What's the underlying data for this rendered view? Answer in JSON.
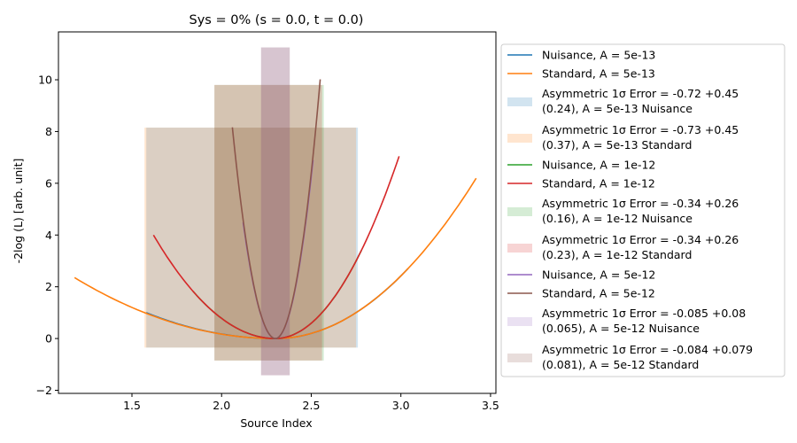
{
  "chart_data": {
    "type": "line",
    "title": "Sys = 0% (s = 0.0, t = 0.0)",
    "xlabel": "Source Index",
    "ylabel": "-2log (L) [arb. unit]",
    "xlim": [
      1.09,
      3.53
    ],
    "ylim": [
      -2.12,
      11.85
    ],
    "xticks": [
      1.5,
      2.0,
      2.5,
      3.0,
      3.5
    ],
    "xtick_labels": [
      "1.5",
      "2.0",
      "2.5",
      "3.0",
      "3.5"
    ],
    "yticks": [
      -2,
      0,
      2,
      4,
      6,
      8,
      10
    ],
    "ytick_labels": [
      "−2",
      "0",
      "2",
      "4",
      "6",
      "8",
      "10"
    ],
    "grid": false,
    "legend_position": "outside-right",
    "series": [
      {
        "name": "Nuisance, A = 5e-13",
        "kind": "line",
        "color": "#1f77b4",
        "x0": 2.3,
        "lo": -0.72,
        "hi": 0.45,
        "range": [
          1.58,
          3.04
        ]
      },
      {
        "name": "Standard, A = 5e-13",
        "kind": "line",
        "color": "#ff7f0e",
        "x0": 2.3,
        "lo": -0.73,
        "hi": 0.45,
        "range": [
          1.18,
          3.42
        ]
      },
      {
        "name_line1": "Asymmetric 1σ Error = -0.72 +0.45",
        "name_line2": "(0.24), A = 5e-13 Nuisance",
        "kind": "band",
        "color": "#1f77b4",
        "x_range": [
          1.58,
          2.76
        ],
        "y_range": [
          -0.35,
          8.15
        ]
      },
      {
        "name_line1": "Asymmetric 1σ Error = -0.73 +0.45",
        "name_line2": "(0.37), A = 5e-13 Standard",
        "kind": "band",
        "color": "#ff7f0e",
        "x_range": [
          1.57,
          2.75
        ],
        "y_range": [
          -0.35,
          8.15
        ]
      },
      {
        "name": "Nuisance, A = 1e-12",
        "kind": "line",
        "color": "#2ca02c",
        "x0": 2.3,
        "lo": -0.34,
        "hi": 0.26,
        "range": [
          1.84,
          2.78
        ]
      },
      {
        "name": "Standard, A = 1e-12",
        "kind": "line",
        "color": "#d62728",
        "x0": 2.3,
        "lo": -0.34,
        "hi": 0.26,
        "range": [
          1.62,
          2.99
        ]
      },
      {
        "name_line1": "Asymmetric 1σ Error = -0.34 +0.26",
        "name_line2": "(0.16), A = 1e-12 Nuisance",
        "kind": "band",
        "color": "#2ca02c",
        "x_range": [
          1.96,
          2.57
        ],
        "y_range": [
          -0.85,
          9.8
        ]
      },
      {
        "name_line1": "Asymmetric 1σ Error = -0.34 +0.26",
        "name_line2": "(0.23), A = 1e-12 Standard",
        "kind": "band",
        "color": "#d62728",
        "x_range": [
          1.96,
          2.56
        ],
        "y_range": [
          -0.85,
          9.8
        ]
      },
      {
        "name": "Nuisance, A = 5e-12",
        "kind": "line",
        "color": "#9467bd",
        "x0": 2.3,
        "lo": -0.085,
        "hi": 0.08,
        "range": [
          2.12,
          2.51
        ]
      },
      {
        "name": "Standard, A = 5e-12",
        "kind": "line",
        "color": "#8c564b",
        "x0": 2.3,
        "lo": -0.084,
        "hi": 0.079,
        "range": [
          2.06,
          2.55
        ]
      },
      {
        "name_line1": "Asymmetric 1σ Error = -0.085 +0.08",
        "name_line2": "(0.065), A = 5e-12 Nuisance",
        "kind": "band",
        "color": "#9467bd",
        "x_range": [
          2.22,
          2.38
        ],
        "y_range": [
          -1.42,
          11.25
        ]
      },
      {
        "name_line1": "Asymmetric 1σ Error = -0.084 +0.079",
        "name_line2": "(0.081), A = 5e-12 Standard",
        "kind": "band",
        "color": "#8c564b",
        "x_range": [
          2.22,
          2.38
        ],
        "y_range": [
          -1.42,
          11.25
        ]
      }
    ]
  }
}
